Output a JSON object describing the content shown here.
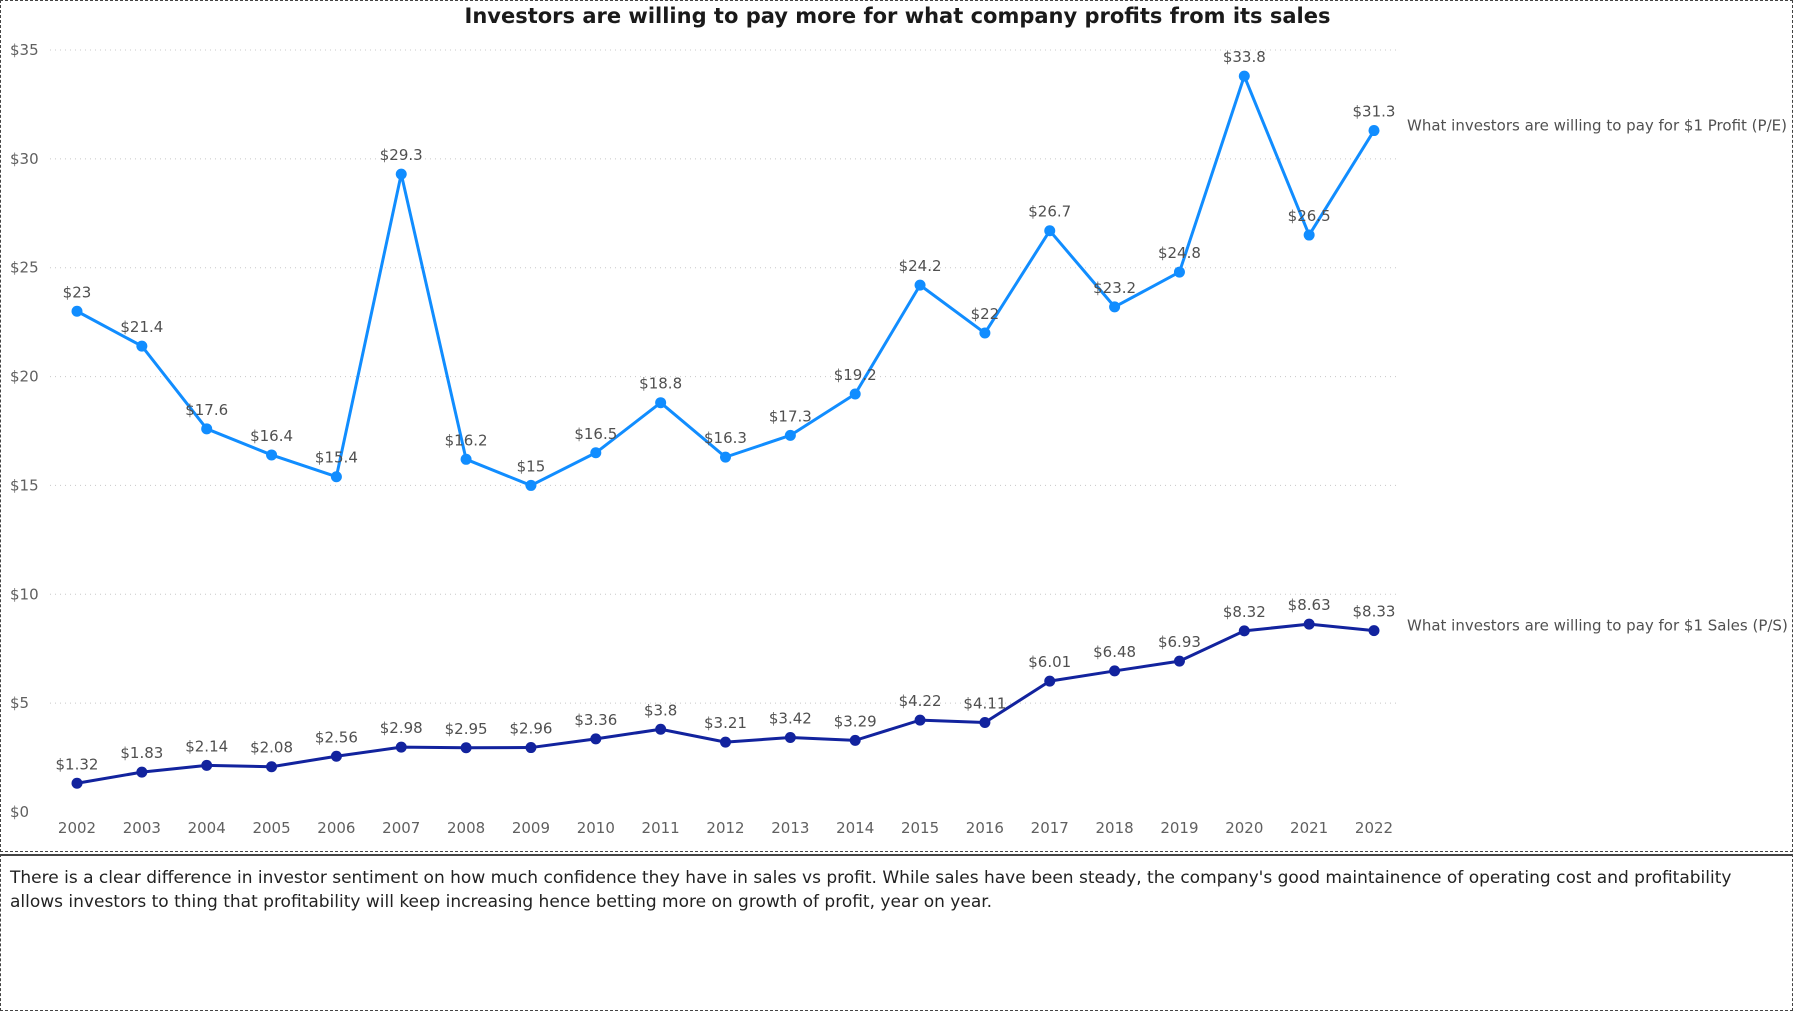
{
  "chart_data": {
    "type": "line",
    "title": "Investors are willing to pay more for what company profits from its sales",
    "xlabel": "",
    "ylabel": "",
    "x": [
      "2002",
      "2003",
      "2004",
      "2005",
      "2006",
      "2007",
      "2008",
      "2009",
      "2010",
      "2011",
      "2012",
      "2013",
      "2014",
      "2015",
      "2016",
      "2017",
      "2018",
      "2019",
      "2020",
      "2021",
      "2022"
    ],
    "ylim": [
      0,
      35
    ],
    "yticks": [
      0,
      5,
      10,
      15,
      20,
      25,
      30,
      35
    ],
    "ytick_labels": [
      "$0",
      "$5",
      "$10",
      "$15",
      "$20",
      "$25",
      "$30",
      "$35"
    ],
    "grid": "horizontal dotted",
    "legend": "none (series labels at end of lines)",
    "series": [
      {
        "name": "What investors are willing to pay for $1 Profit (P/E)",
        "color": "#118dff",
        "values": [
          23,
          21.4,
          17.6,
          16.4,
          15.4,
          29.3,
          16.2,
          15,
          16.5,
          18.8,
          16.3,
          17.3,
          19.2,
          24.2,
          22,
          26.7,
          23.2,
          24.8,
          33.8,
          26.5,
          31.3
        ],
        "labels": [
          "$23",
          "$21.4",
          "$17.6",
          "$16.4",
          "$15.4",
          "$29.3",
          "$16.2",
          "$15",
          "$16.5",
          "$18.8",
          "$16.3",
          "$17.3",
          "$19.2",
          "$24.2",
          "$22",
          "$26.7",
          "$23.2",
          "$24.8",
          "$33.8",
          "$26.5",
          "$31.3"
        ]
      },
      {
        "name": "What investors are willing to pay for $1 Sales (P/S)",
        "color": "#12239e",
        "values": [
          1.32,
          1.83,
          2.14,
          2.08,
          2.56,
          2.98,
          2.95,
          2.96,
          3.36,
          3.8,
          3.21,
          3.42,
          3.29,
          4.22,
          4.11,
          6.01,
          6.48,
          6.93,
          8.32,
          8.63,
          8.33
        ],
        "labels": [
          "$1.32",
          "$1.83",
          "$2.14",
          "$2.08",
          "$2.56",
          "$2.98",
          "$2.95",
          "$2.96",
          "$3.36",
          "$3.8",
          "$3.21",
          "$3.42",
          "$3.29",
          "$4.22",
          "$4.11",
          "$6.01",
          "$6.48",
          "$6.93",
          "$8.32",
          "$8.63",
          "$8.33"
        ]
      }
    ]
  },
  "commentary": "There is a clear difference in investor sentiment on how much confidence they have in sales vs profit. While sales have been steady, the company's good maintainence of operating cost and profitability allows investors to thing that profitability will keep increasing hence betting more on growth of profit, year on year."
}
